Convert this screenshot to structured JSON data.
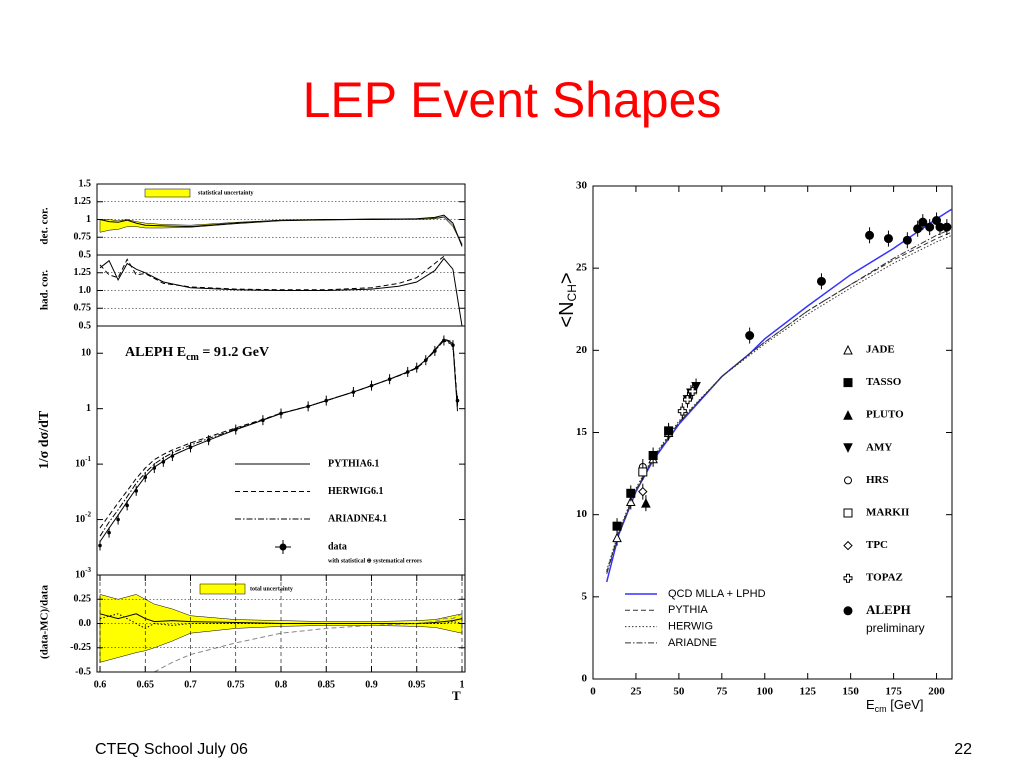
{
  "title": "LEP Event Shapes",
  "footer_left": "CTEQ School July 06",
  "footer_right": "22",
  "chart_data": [
    {
      "type": "line",
      "ylabel": "det. cor.",
      "xlim": [
        0.6,
        1.0
      ],
      "ylim": [
        0.5,
        1.5
      ],
      "yticks": [
        1.5,
        1.25,
        1,
        0.75,
        0.5
      ],
      "grid": true,
      "x": [
        0.6,
        0.61,
        0.62,
        0.63,
        0.64,
        0.65,
        0.67,
        0.7,
        0.75,
        0.8,
        0.85,
        0.9,
        0.95,
        0.97,
        0.98,
        0.99,
        1.0
      ],
      "bands": [
        {
          "name": "statistical uncertainty",
          "color": "#ffff00",
          "upper": [
            1.0,
            1.0,
            0.98,
            1.0,
            0.97,
            0.95,
            0.93,
            0.92,
            0.96,
            0.99,
            1.0,
            1.01,
            1.01,
            1.02,
            1.04,
            0.92,
            0.66
          ],
          "lower": [
            0.82,
            0.85,
            0.86,
            0.9,
            0.9,
            0.88,
            0.88,
            0.89,
            0.94,
            0.98,
            0.99,
            1.0,
            1.0,
            1.01,
            1.03,
            0.9,
            0.64
          ]
        }
      ],
      "series": [
        {
          "color": "#000000",
          "dash": "solid",
          "values": [
            1.0,
            0.97,
            0.96,
            0.99,
            0.95,
            0.92,
            0.91,
            0.9,
            0.95,
            0.99,
            1.0,
            1.0,
            1.01,
            1.03,
            1.06,
            0.95,
            0.62
          ]
        }
      ]
    },
    {
      "type": "line",
      "ylabel": "had. cor.",
      "xlim": [
        0.6,
        1.0
      ],
      "ylim": [
        0.5,
        1.5
      ],
      "yticks": [
        1.25,
        {
          "value": 1,
          "label": "1.0"
        },
        0.75,
        0.5
      ],
      "grid": true,
      "x": [
        0.6,
        0.61,
        0.62,
        0.63,
        0.64,
        0.65,
        0.67,
        0.7,
        0.75,
        0.8,
        0.85,
        0.9,
        0.93,
        0.95,
        0.97,
        0.98,
        0.99,
        1.0
      ],
      "series": [
        {
          "color": "#000000",
          "dash": "solid",
          "values": [
            1.32,
            1.42,
            1.15,
            1.38,
            1.3,
            1.25,
            1.12,
            1.04,
            1.01,
            1.0,
            1.0,
            1.02,
            1.06,
            1.12,
            1.28,
            1.45,
            1.3,
            0.5
          ]
        },
        {
          "color": "#000000",
          "dash": "dashed",
          "values": [
            1.36,
            1.22,
            1.18,
            1.44,
            1.22,
            1.24,
            1.1,
            1.05,
            1.02,
            1.01,
            1.01,
            1.04,
            1.1,
            1.18,
            1.38,
            1.48,
            null,
            null
          ]
        }
      ]
    },
    {
      "type": "line",
      "ylabel": "1/σ dσ/dT",
      "log_y": true,
      "xlim": [
        0.6,
        1.0
      ],
      "ylim": [
        0.001,
        31
      ],
      "yticks": [
        10,
        1,
        {
          "value": 0.1,
          "label": "10",
          "exponent": "-1"
        },
        {
          "value": 0.01,
          "label": "10",
          "exponent": "-2"
        },
        {
          "value": 0.001,
          "label": "10",
          "exponent": "-3"
        }
      ],
      "annotation": {
        "text": "ALEPH   E",
        "sub": "cm",
        "rest": " = 91.2 GeV"
      },
      "x": [
        0.6,
        0.61,
        0.62,
        0.63,
        0.64,
        0.65,
        0.66,
        0.67,
        0.68,
        0.7,
        0.72,
        0.75,
        0.78,
        0.8,
        0.83,
        0.85,
        0.88,
        0.9,
        0.92,
        0.94,
        0.95,
        0.96,
        0.97,
        0.98,
        0.99,
        0.995
      ],
      "series": [
        {
          "name": "PYTHIA6.1",
          "color": "#000000",
          "dash": "solid",
          "values": [
            0.004,
            0.007,
            0.012,
            0.021,
            0.036,
            0.06,
            0.088,
            0.113,
            0.143,
            0.2,
            0.27,
            0.42,
            0.62,
            0.82,
            1.1,
            1.4,
            2.0,
            2.6,
            3.4,
            4.6,
            5.5,
            7.6,
            11.5,
            18,
            15,
            0.9
          ]
        },
        {
          "name": "HERWIG6.1",
          "color": "#000000",
          "dash": "dashed",
          "values": [
            0.007,
            0.012,
            0.02,
            0.033,
            0.055,
            0.085,
            0.12,
            0.15,
            0.18,
            0.24,
            0.31,
            0.45,
            0.64,
            0.83,
            1.1,
            1.4,
            2.0,
            2.6,
            3.4,
            4.5,
            5.4,
            7.3,
            11,
            18,
            16,
            1.2
          ]
        },
        {
          "name": "ARIADNE4.1",
          "color": "#000000",
          "dash": "dashdot",
          "values": [
            0.005,
            0.009,
            0.015,
            0.026,
            0.045,
            0.07,
            0.1,
            0.13,
            0.16,
            0.22,
            0.29,
            0.43,
            0.63,
            0.82,
            1.1,
            1.4,
            2.0,
            2.6,
            3.4,
            4.6,
            5.5,
            7.5,
            11,
            17,
            14,
            1.0
          ]
        }
      ],
      "data": {
        "name": "data",
        "note": "with statistical ⊕ systematical errors",
        "values": [
          0.0034,
          0.0058,
          0.01,
          0.018,
          0.033,
          0.058,
          0.085,
          0.11,
          0.14,
          0.2,
          0.27,
          0.42,
          0.62,
          0.82,
          1.1,
          1.4,
          2.0,
          2.6,
          3.4,
          4.6,
          5.5,
          7.5,
          11,
          17,
          14,
          1.4
        ]
      }
    },
    {
      "type": "line",
      "ylabel": "(data-MC)/data",
      "xlabel": "T",
      "xlim": [
        0.6,
        1.0
      ],
      "ylim": [
        -0.5,
        0.5
      ],
      "yticks": [
        0.25,
        {
          "value": 0,
          "label": "0.0"
        },
        -0.25,
        -0.5
      ],
      "grid": true,
      "xticks": [
        0.6,
        0.65,
        0.7,
        0.75,
        0.8,
        0.85,
        0.9,
        0.95,
        1
      ],
      "x": [
        0.6,
        0.62,
        0.64,
        0.65,
        0.66,
        0.68,
        0.7,
        0.75,
        0.8,
        0.85,
        0.9,
        0.95,
        0.97,
        0.98,
        0.99,
        1.0
      ],
      "bands": [
        {
          "name": "total uncertainty",
          "color": "#ffff00",
          "upper": [
            0.3,
            0.25,
            0.3,
            0.25,
            0.2,
            0.15,
            0.08,
            0.04,
            0.03,
            0.02,
            0.02,
            0.03,
            0.04,
            0.06,
            0.08,
            0.1
          ],
          "lower": [
            -0.4,
            -0.35,
            -0.3,
            -0.28,
            -0.25,
            -0.18,
            -0.1,
            -0.05,
            -0.03,
            -0.02,
            -0.02,
            -0.03,
            -0.04,
            -0.06,
            -0.08,
            -0.1
          ]
        }
      ],
      "series": [
        {
          "color": "#000000",
          "dash": "solid",
          "values": [
            0.1,
            0.05,
            0.1,
            0.05,
            0.02,
            0.03,
            0.02,
            0.01,
            0.0,
            0.0,
            0.0,
            0.0,
            0.01,
            0.02,
            0.03,
            0.05
          ]
        },
        {
          "color": "#888888",
          "dash": "dashed",
          "values": [
            null,
            null,
            null,
            null,
            -0.5,
            -0.4,
            -0.32,
            -0.2,
            -0.1,
            -0.05,
            -0.02,
            0.0,
            0.02,
            0.05,
            0.05,
            0.1
          ]
        },
        {
          "color": "#000000",
          "dash": "dotted",
          "values": [
            0.05,
            0.1,
            0.0,
            -0.05,
            0.0,
            -0.02,
            0.0,
            0.0,
            0.0,
            0.0,
            0.0,
            0.0,
            0.0,
            0.0,
            0.02,
            0.0
          ]
        }
      ]
    },
    {
      "type": "scatter",
      "ylabel": {
        "text": "<N",
        "sub": "CH",
        "end": ">"
      },
      "xlabel": {
        "text": "E",
        "sub": "cm",
        "unit": " [GeV]"
      },
      "xlim": [
        0,
        209
      ],
      "ylim": [
        0,
        30
      ],
      "xticks": [
        0,
        25,
        50,
        75,
        100,
        125,
        150,
        175,
        200
      ],
      "yticks": [
        0,
        5,
        10,
        15,
        20,
        25,
        30
      ],
      "series": [
        {
          "name": "JADE",
          "marker": "open-triangle",
          "x": [
            14,
            22,
            35,
            44
          ],
          "values": [
            8.6,
            10.8,
            13.4,
            15.0
          ]
        },
        {
          "name": "TASSO",
          "marker": "square",
          "x": [
            14,
            22,
            35,
            44
          ],
          "values": [
            9.3,
            11.3,
            13.6,
            15.1
          ]
        },
        {
          "name": "PLUTO",
          "marker": "triangle",
          "x": [
            30.8
          ],
          "values": [
            10.7
          ]
        },
        {
          "name": "AMY",
          "marker": "down-triangle",
          "x": [
            55,
            57,
            60
          ],
          "values": [
            17.0,
            17.4,
            17.8
          ]
        },
        {
          "name": "HRS",
          "marker": "open-circle",
          "x": [
            29
          ],
          "values": [
            12.9
          ]
        },
        {
          "name": "MARKII",
          "marker": "open-square",
          "x": [
            29
          ],
          "values": [
            12.6
          ]
        },
        {
          "name": "TPC",
          "marker": "diamond",
          "x": [
            29
          ],
          "values": [
            11.4
          ]
        },
        {
          "name": "TOPAZ",
          "marker": "cross",
          "x": [
            52,
            55,
            58
          ],
          "values": [
            16.3,
            17.0,
            17.5
          ]
        },
        {
          "name": "ALEPH",
          "note": "preliminary",
          "marker": "circle",
          "x": [
            91.2,
            133,
            161,
            172,
            183,
            189,
            192,
            196,
            200,
            202,
            206
          ],
          "values": [
            20.9,
            24.2,
            27.0,
            26.8,
            26.7,
            27.4,
            27.8,
            27.5,
            27.9,
            27.5,
            27.5
          ]
        }
      ],
      "curve_x": [
        8,
        15,
        25,
        35,
        50,
        75,
        91.2,
        100,
        125,
        150,
        175,
        200,
        209
      ],
      "curves": [
        {
          "name": "QCD MLLA + LPHD",
          "color": "#3333ff",
          "dash": "solid",
          "values": [
            5.9,
            8.8,
            11.4,
            13.3,
            15.5,
            18.4,
            19.8,
            20.7,
            22.7,
            24.6,
            26.2,
            28.0,
            28.6
          ]
        },
        {
          "name": "PYTHIA",
          "color": "#333333",
          "dash": "dashed",
          "values": [
            6.5,
            8.9,
            11.5,
            13.4,
            15.6,
            18.4,
            19.8,
            20.5,
            22.4,
            24.0,
            25.5,
            26.8,
            27.2
          ]
        },
        {
          "name": "HERWIG",
          "color": "#333333",
          "dash": "dotted",
          "values": [
            6.6,
            9.0,
            11.6,
            13.5,
            15.7,
            18.4,
            19.7,
            20.4,
            22.2,
            23.8,
            25.3,
            26.6,
            27.0
          ]
        },
        {
          "name": "ARIADNE",
          "color": "#333333",
          "dash": "dashdot",
          "values": [
            6.4,
            8.8,
            11.4,
            13.4,
            15.6,
            18.4,
            19.8,
            20.5,
            22.4,
            24.0,
            25.6,
            27.0,
            27.4
          ]
        }
      ]
    }
  ]
}
